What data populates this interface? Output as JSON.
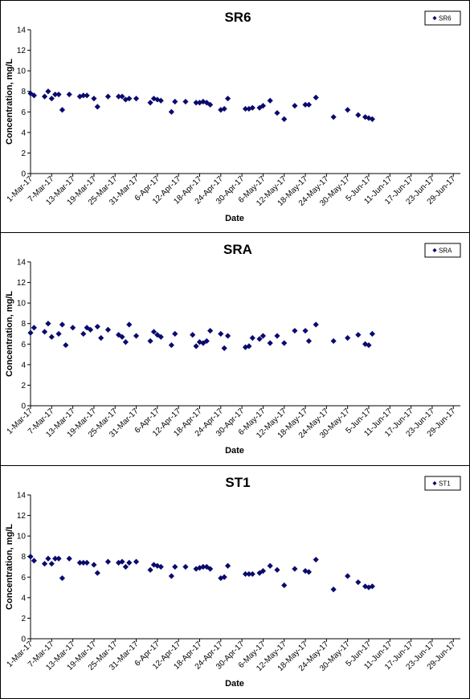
{
  "colors": {
    "marker": "#0a0a6e",
    "axis": "#000000",
    "border": "#000000"
  },
  "chart_data": [
    {
      "type": "scatter",
      "title": "SR6",
      "xlabel": "Date",
      "ylabel": "Concentration, mg/L",
      "ylim": [
        0,
        14
      ],
      "yticks": [
        0,
        2,
        4,
        6,
        8,
        10,
        12,
        14
      ],
      "xlim": [
        "2017-03-01",
        "2017-07-01"
      ],
      "xtick_labels": [
        "1-Mar-17",
        "7-Mar-17",
        "13-Mar-17",
        "19-Mar-17",
        "25-Mar-17",
        "31-Mar-17",
        "6-Apr-17",
        "12-Apr-17",
        "18-Apr-17",
        "24-Apr-17",
        "30-Apr-17",
        "6-May-17",
        "12-May-17",
        "18-May-17",
        "24-May-17",
        "30-May-17",
        "5-Jun-17",
        "11-Jun-17",
        "17-Jun-17",
        "23-Jun-17",
        "29-Jun-17"
      ],
      "legend": "top-right",
      "grid": false,
      "series": [
        {
          "name": "SR6",
          "points": [
            {
              "x": "2017-03-01",
              "y": 7.8
            },
            {
              "x": "2017-03-02",
              "y": 7.6
            },
            {
              "x": "2017-03-05",
              "y": 7.5
            },
            {
              "x": "2017-03-06",
              "y": 8.0
            },
            {
              "x": "2017-03-07",
              "y": 7.3
            },
            {
              "x": "2017-03-08",
              "y": 7.7
            },
            {
              "x": "2017-03-09",
              "y": 7.7
            },
            {
              "x": "2017-03-10",
              "y": 6.2
            },
            {
              "x": "2017-03-12",
              "y": 7.7
            },
            {
              "x": "2017-03-15",
              "y": 7.5
            },
            {
              "x": "2017-03-16",
              "y": 7.6
            },
            {
              "x": "2017-03-17",
              "y": 7.6
            },
            {
              "x": "2017-03-19",
              "y": 7.3
            },
            {
              "x": "2017-03-20",
              "y": 6.5
            },
            {
              "x": "2017-03-23",
              "y": 7.5
            },
            {
              "x": "2017-03-26",
              "y": 7.5
            },
            {
              "x": "2017-03-27",
              "y": 7.5
            },
            {
              "x": "2017-03-28",
              "y": 7.2
            },
            {
              "x": "2017-03-29",
              "y": 7.3
            },
            {
              "x": "2017-03-31",
              "y": 7.3
            },
            {
              "x": "2017-04-04",
              "y": 6.9
            },
            {
              "x": "2017-04-05",
              "y": 7.3
            },
            {
              "x": "2017-04-06",
              "y": 7.2
            },
            {
              "x": "2017-04-07",
              "y": 7.1
            },
            {
              "x": "2017-04-10",
              "y": 6.0
            },
            {
              "x": "2017-04-11",
              "y": 7.0
            },
            {
              "x": "2017-04-14",
              "y": 7.0
            },
            {
              "x": "2017-04-17",
              "y": 6.9
            },
            {
              "x": "2017-04-18",
              "y": 6.9
            },
            {
              "x": "2017-04-19",
              "y": 7.0
            },
            {
              "x": "2017-04-20",
              "y": 6.9
            },
            {
              "x": "2017-04-21",
              "y": 6.7
            },
            {
              "x": "2017-04-24",
              "y": 6.2
            },
            {
              "x": "2017-04-25",
              "y": 6.3
            },
            {
              "x": "2017-04-26",
              "y": 7.3
            },
            {
              "x": "2017-05-01",
              "y": 6.3
            },
            {
              "x": "2017-05-02",
              "y": 6.3
            },
            {
              "x": "2017-05-03",
              "y": 6.4
            },
            {
              "x": "2017-05-05",
              "y": 6.4
            },
            {
              "x": "2017-05-06",
              "y": 6.6
            },
            {
              "x": "2017-05-08",
              "y": 7.1
            },
            {
              "x": "2017-05-10",
              "y": 5.9
            },
            {
              "x": "2017-05-12",
              "y": 5.3
            },
            {
              "x": "2017-05-15",
              "y": 6.6
            },
            {
              "x": "2017-05-18",
              "y": 6.7
            },
            {
              "x": "2017-05-19",
              "y": 6.7
            },
            {
              "x": "2017-05-21",
              "y": 7.4
            },
            {
              "x": "2017-05-26",
              "y": 5.5
            },
            {
              "x": "2017-05-30",
              "y": 6.2
            },
            {
              "x": "2017-06-02",
              "y": 5.7
            },
            {
              "x": "2017-06-04",
              "y": 5.5
            },
            {
              "x": "2017-06-05",
              "y": 5.4
            },
            {
              "x": "2017-06-06",
              "y": 5.3
            }
          ]
        }
      ]
    },
    {
      "type": "scatter",
      "title": "SRA",
      "xlabel": "Date",
      "ylabel": "Concentration, mg/L",
      "ylim": [
        0,
        14
      ],
      "yticks": [
        0,
        2,
        4,
        6,
        8,
        10,
        12,
        14
      ],
      "xlim": [
        "2017-03-01",
        "2017-07-01"
      ],
      "xtick_labels": [
        "1-Mar-17",
        "7-Mar-17",
        "13-Mar-17",
        "19-Mar-17",
        "25-Mar-17",
        "31-Mar-17",
        "6-Apr-17",
        "12-Apr-17",
        "18-Apr-17",
        "24-Apr-17",
        "30-Apr-17",
        "6-May-17",
        "12-May-17",
        "18-May-17",
        "24-May-17",
        "30-May-17",
        "5-Jun-17",
        "11-Jun-17",
        "17-Jun-17",
        "23-Jun-17",
        "29-Jun-17"
      ],
      "legend": "top-right",
      "grid": false,
      "series": [
        {
          "name": "SRA",
          "points": [
            {
              "x": "2017-03-01",
              "y": 7.1
            },
            {
              "x": "2017-03-02",
              "y": 7.6
            },
            {
              "x": "2017-03-05",
              "y": 7.2
            },
            {
              "x": "2017-03-06",
              "y": 8.0
            },
            {
              "x": "2017-03-07",
              "y": 6.7
            },
            {
              "x": "2017-03-09",
              "y": 7.0
            },
            {
              "x": "2017-03-10",
              "y": 7.9
            },
            {
              "x": "2017-03-11",
              "y": 5.9
            },
            {
              "x": "2017-03-13",
              "y": 7.6
            },
            {
              "x": "2017-03-16",
              "y": 7.0
            },
            {
              "x": "2017-03-17",
              "y": 7.6
            },
            {
              "x": "2017-03-18",
              "y": 7.4
            },
            {
              "x": "2017-03-20",
              "y": 7.7
            },
            {
              "x": "2017-03-21",
              "y": 6.6
            },
            {
              "x": "2017-03-23",
              "y": 7.4
            },
            {
              "x": "2017-03-26",
              "y": 6.9
            },
            {
              "x": "2017-03-27",
              "y": 6.7
            },
            {
              "x": "2017-03-28",
              "y": 6.2
            },
            {
              "x": "2017-03-29",
              "y": 7.9
            },
            {
              "x": "2017-03-31",
              "y": 6.8
            },
            {
              "x": "2017-04-04",
              "y": 6.3
            },
            {
              "x": "2017-04-05",
              "y": 7.2
            },
            {
              "x": "2017-04-06",
              "y": 6.9
            },
            {
              "x": "2017-04-07",
              "y": 6.7
            },
            {
              "x": "2017-04-10",
              "y": 5.9
            },
            {
              "x": "2017-04-11",
              "y": 7.0
            },
            {
              "x": "2017-04-16",
              "y": 6.9
            },
            {
              "x": "2017-04-17",
              "y": 5.8
            },
            {
              "x": "2017-04-18",
              "y": 6.2
            },
            {
              "x": "2017-04-19",
              "y": 6.1
            },
            {
              "x": "2017-04-20",
              "y": 6.3
            },
            {
              "x": "2017-04-21",
              "y": 7.3
            },
            {
              "x": "2017-04-24",
              "y": 7.0
            },
            {
              "x": "2017-04-25",
              "y": 5.6
            },
            {
              "x": "2017-04-26",
              "y": 6.8
            },
            {
              "x": "2017-05-01",
              "y": 5.7
            },
            {
              "x": "2017-05-02",
              "y": 5.8
            },
            {
              "x": "2017-05-03",
              "y": 6.6
            },
            {
              "x": "2017-05-05",
              "y": 6.5
            },
            {
              "x": "2017-05-06",
              "y": 6.8
            },
            {
              "x": "2017-05-08",
              "y": 6.1
            },
            {
              "x": "2017-05-10",
              "y": 6.8
            },
            {
              "x": "2017-05-12",
              "y": 6.1
            },
            {
              "x": "2017-05-15",
              "y": 7.3
            },
            {
              "x": "2017-05-18",
              "y": 7.3
            },
            {
              "x": "2017-05-19",
              "y": 6.3
            },
            {
              "x": "2017-05-21",
              "y": 7.9
            },
            {
              "x": "2017-05-26",
              "y": 6.3
            },
            {
              "x": "2017-05-30",
              "y": 6.6
            },
            {
              "x": "2017-06-02",
              "y": 6.9
            },
            {
              "x": "2017-06-04",
              "y": 6.0
            },
            {
              "x": "2017-06-05",
              "y": 5.9
            },
            {
              "x": "2017-06-06",
              "y": 7.0
            }
          ]
        }
      ]
    },
    {
      "type": "scatter",
      "title": "ST1",
      "xlabel": "Date",
      "ylabel": "Concentration, mg/L",
      "ylim": [
        0,
        14
      ],
      "yticks": [
        0,
        2,
        4,
        6,
        8,
        10,
        12,
        14
      ],
      "xlim": [
        "2017-03-01",
        "2017-07-01"
      ],
      "xtick_labels": [
        "1-Mar-17",
        "7-Mar-17",
        "13-Mar-17",
        "19-Mar-17",
        "25-Mar-17",
        "31-Mar-17",
        "6-Apr-17",
        "12-Apr-17",
        "18-Apr-17",
        "24-Apr-17",
        "30-Apr-17",
        "6-May-17",
        "12-May-17",
        "18-May-17",
        "24-May-17",
        "30-May-17",
        "5-Jun-17",
        "11-Jun-17",
        "17-Jun-17",
        "23-Jun-17",
        "29-Jun-17"
      ],
      "legend": "top-right",
      "grid": false,
      "series": [
        {
          "name": "ST1",
          "points": [
            {
              "x": "2017-03-01",
              "y": 8.0
            },
            {
              "x": "2017-03-02",
              "y": 7.6
            },
            {
              "x": "2017-03-05",
              "y": 7.3
            },
            {
              "x": "2017-03-06",
              "y": 7.8
            },
            {
              "x": "2017-03-07",
              "y": 7.3
            },
            {
              "x": "2017-03-08",
              "y": 7.8
            },
            {
              "x": "2017-03-09",
              "y": 7.8
            },
            {
              "x": "2017-03-10",
              "y": 5.9
            },
            {
              "x": "2017-03-12",
              "y": 7.8
            },
            {
              "x": "2017-03-15",
              "y": 7.4
            },
            {
              "x": "2017-03-16",
              "y": 7.4
            },
            {
              "x": "2017-03-17",
              "y": 7.4
            },
            {
              "x": "2017-03-19",
              "y": 7.2
            },
            {
              "x": "2017-03-20",
              "y": 6.4
            },
            {
              "x": "2017-03-23",
              "y": 7.5
            },
            {
              "x": "2017-03-26",
              "y": 7.4
            },
            {
              "x": "2017-03-27",
              "y": 7.5
            },
            {
              "x": "2017-03-28",
              "y": 7.0
            },
            {
              "x": "2017-03-29",
              "y": 7.4
            },
            {
              "x": "2017-03-31",
              "y": 7.5
            },
            {
              "x": "2017-04-04",
              "y": 6.7
            },
            {
              "x": "2017-04-05",
              "y": 7.2
            },
            {
              "x": "2017-04-06",
              "y": 7.1
            },
            {
              "x": "2017-04-07",
              "y": 7.0
            },
            {
              "x": "2017-04-10",
              "y": 6.1
            },
            {
              "x": "2017-04-11",
              "y": 7.0
            },
            {
              "x": "2017-04-14",
              "y": 7.0
            },
            {
              "x": "2017-04-17",
              "y": 6.8
            },
            {
              "x": "2017-04-18",
              "y": 6.9
            },
            {
              "x": "2017-04-19",
              "y": 7.0
            },
            {
              "x": "2017-04-20",
              "y": 7.0
            },
            {
              "x": "2017-04-21",
              "y": 6.8
            },
            {
              "x": "2017-04-24",
              "y": 5.9
            },
            {
              "x": "2017-04-25",
              "y": 6.0
            },
            {
              "x": "2017-04-26",
              "y": 7.1
            },
            {
              "x": "2017-05-01",
              "y": 6.3
            },
            {
              "x": "2017-05-02",
              "y": 6.3
            },
            {
              "x": "2017-05-03",
              "y": 6.3
            },
            {
              "x": "2017-05-05",
              "y": 6.4
            },
            {
              "x": "2017-05-06",
              "y": 6.6
            },
            {
              "x": "2017-05-08",
              "y": 7.1
            },
            {
              "x": "2017-05-10",
              "y": 6.7
            },
            {
              "x": "2017-05-12",
              "y": 5.2
            },
            {
              "x": "2017-05-15",
              "y": 6.8
            },
            {
              "x": "2017-05-18",
              "y": 6.6
            },
            {
              "x": "2017-05-19",
              "y": 6.5
            },
            {
              "x": "2017-05-21",
              "y": 7.7
            },
            {
              "x": "2017-05-26",
              "y": 4.8
            },
            {
              "x": "2017-05-30",
              "y": 6.1
            },
            {
              "x": "2017-06-02",
              "y": 5.5
            },
            {
              "x": "2017-06-04",
              "y": 5.1
            },
            {
              "x": "2017-06-05",
              "y": 5.0
            },
            {
              "x": "2017-06-06",
              "y": 5.1
            }
          ]
        }
      ]
    }
  ]
}
